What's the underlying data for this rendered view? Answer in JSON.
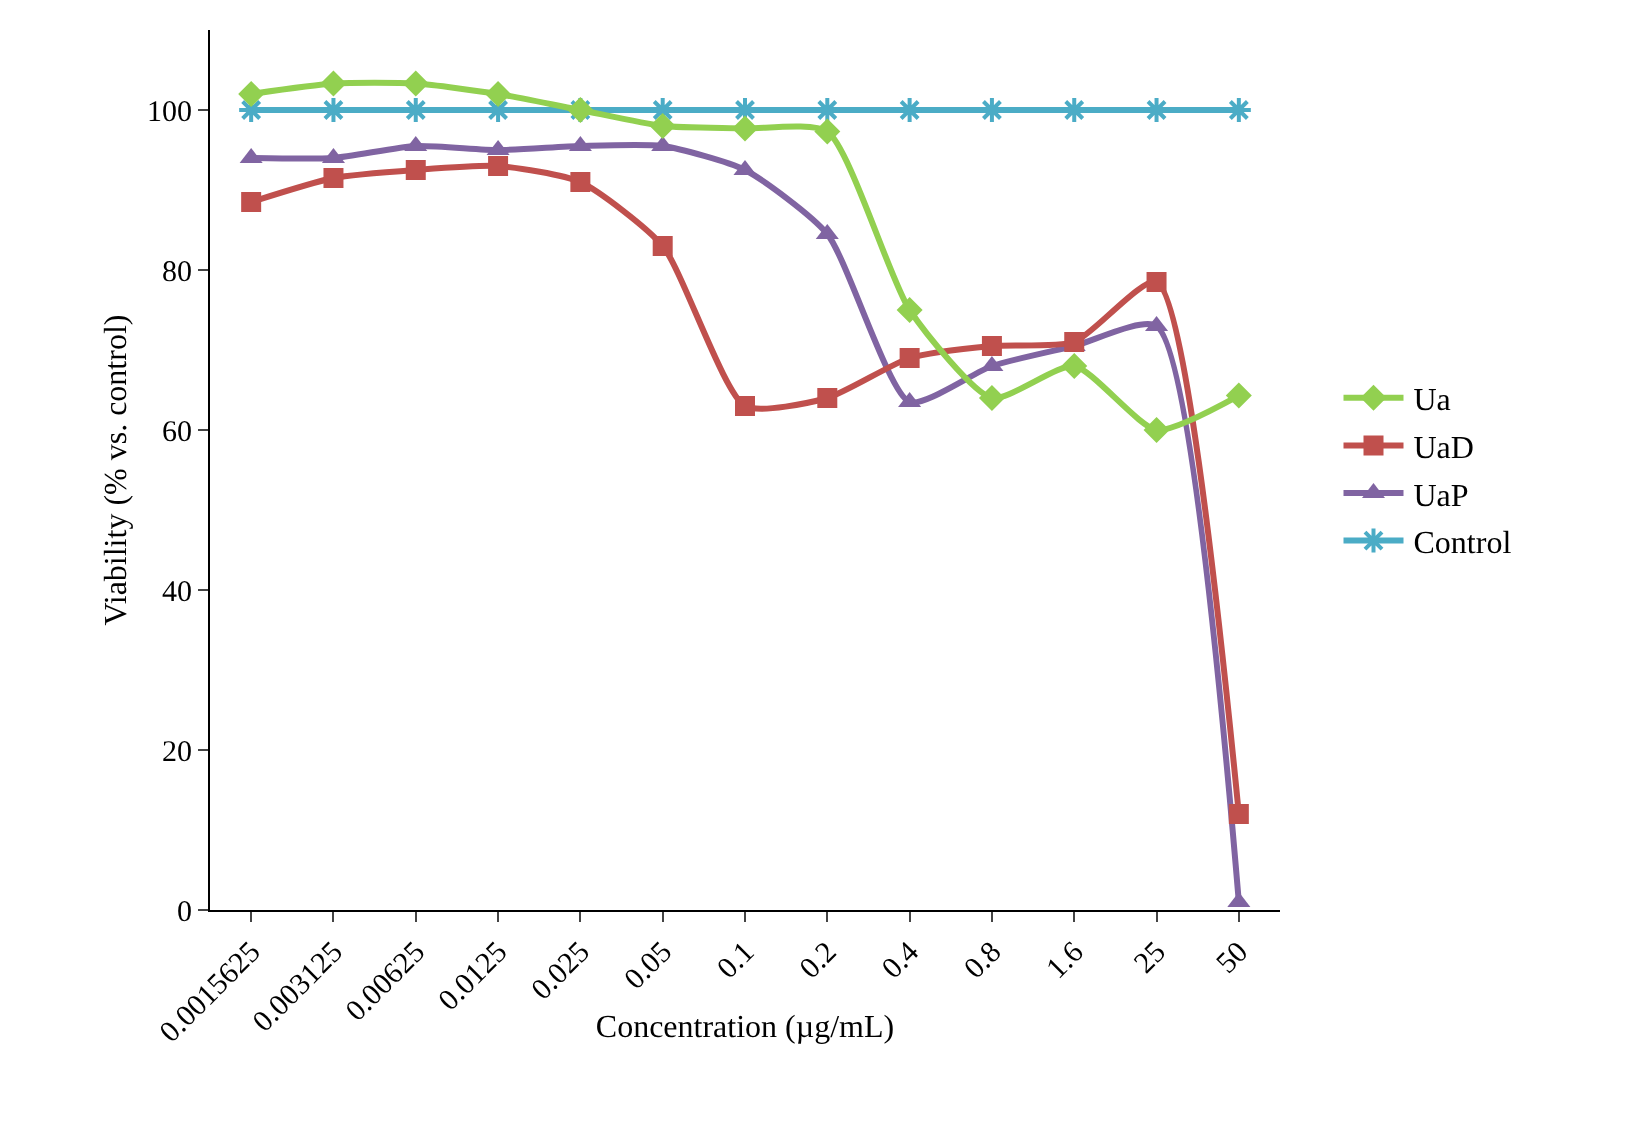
{
  "chart_data": {
    "type": "line",
    "xlabel": "Concentration (µg/mL)",
    "ylabel": "Viability (% vs. control)",
    "categories": [
      "0.0015625",
      "0.003125",
      "0.00625",
      "0.0125",
      "0.025",
      "0.05",
      "0.1",
      "0.2",
      "0.4",
      "0.8",
      "1.6",
      "25",
      "50"
    ],
    "series": [
      {
        "name": "Ua",
        "color": "#92d050",
        "marker": "diamond",
        "values": [
          102,
          103.3,
          103.3,
          102,
          100,
          98,
          97.7,
          97.3,
          75,
          64,
          68,
          60,
          64.3
        ]
      },
      {
        "name": "UaD",
        "color": "#c0504d",
        "marker": "square",
        "values": [
          88.5,
          91.5,
          92.5,
          93,
          91,
          83,
          63,
          64,
          69,
          70.5,
          71,
          78.5,
          12
        ]
      },
      {
        "name": "UaP",
        "color": "#8064a2",
        "marker": "triangle",
        "values": [
          94,
          94,
          95.5,
          95,
          95.5,
          95.5,
          92.5,
          84.5,
          63.5,
          68,
          70.5,
          73,
          1
        ]
      },
      {
        "name": "Control",
        "color": "#4bacc6",
        "marker": "cross",
        "values": [
          100,
          100,
          100,
          100,
          100,
          100,
          100,
          100,
          100,
          100,
          100,
          100,
          100
        ]
      }
    ],
    "ylim": [
      0,
      110
    ],
    "yticks": [
      0,
      20,
      40,
      60,
      80,
      100
    ],
    "grid": false,
    "legend": "right"
  }
}
